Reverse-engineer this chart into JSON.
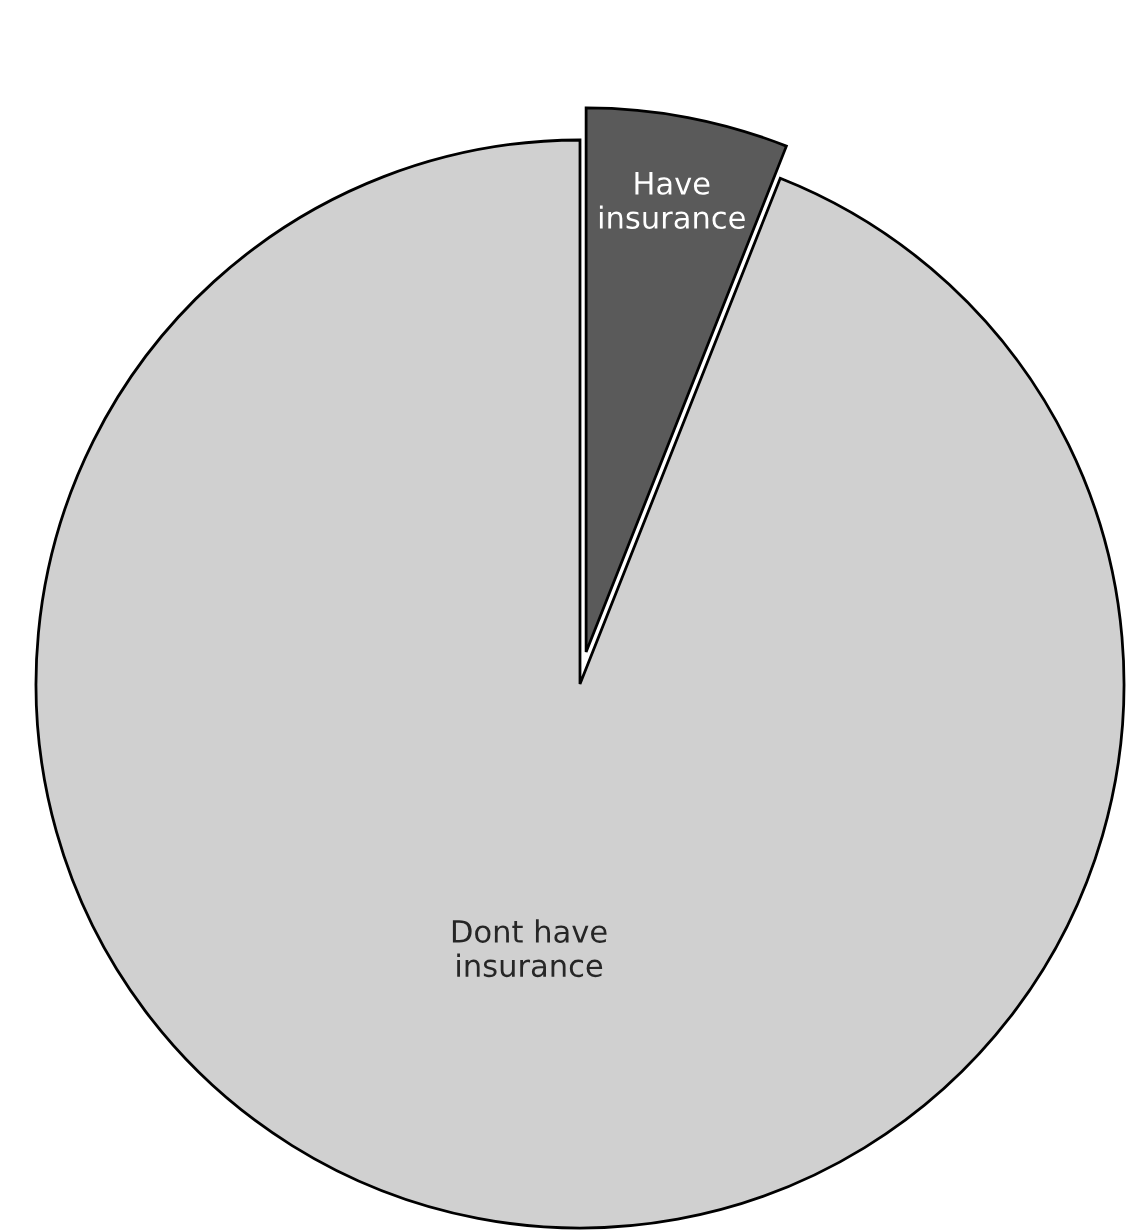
{
  "chart_data": {
    "type": "pie",
    "categories": [
      "Have\ninsurance",
      "Dont have\ninsurance"
    ],
    "values": [
      6,
      94
    ],
    "colors": [
      "#5a5a5a",
      "#d0d0d0"
    ]
  }
}
